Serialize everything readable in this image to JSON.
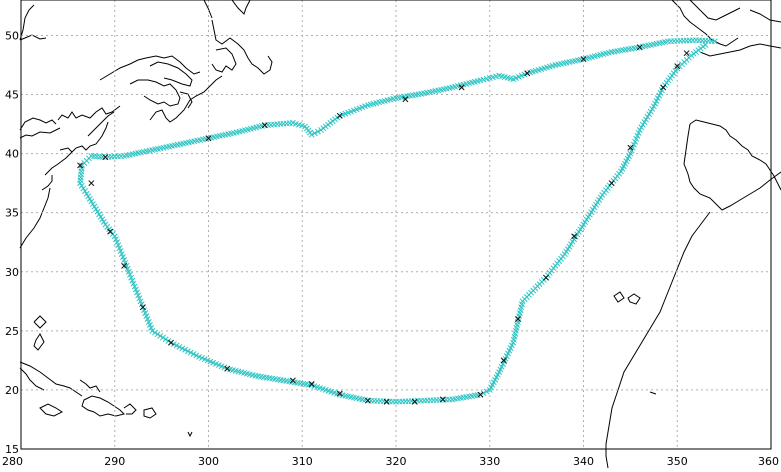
{
  "map": {
    "x_ticks": [
      "280",
      "290",
      "300",
      "310",
      "320",
      "330",
      "340",
      "350",
      "360"
    ],
    "y_ticks": [
      "15",
      "20",
      "25",
      "30",
      "35",
      "40",
      "45",
      "50"
    ],
    "lon_range": [
      280,
      360
    ],
    "lat_range": [
      15,
      53
    ],
    "grid": "dotted",
    "colors": {
      "coast": "#000000",
      "track": "#2ec4c4",
      "track_dark": "#111111",
      "grid": "#b0b0b0"
    },
    "marker": "x",
    "track_lonlat": [
      [
        354,
        49.5
      ],
      [
        352,
        49.6
      ],
      [
        349,
        49.5
      ],
      [
        346,
        49
      ],
      [
        343,
        48.6
      ],
      [
        340,
        48
      ],
      [
        337,
        47.5
      ],
      [
        334,
        46.8
      ],
      [
        332.5,
        46.3
      ],
      [
        331,
        46.6
      ],
      [
        329,
        46.2
      ],
      [
        326,
        45.6
      ],
      [
        323,
        45.1
      ],
      [
        320,
        44.7
      ],
      [
        317,
        44.1
      ],
      [
        314,
        43.2
      ],
      [
        312,
        42
      ],
      [
        311,
        41.6
      ],
      [
        310.3,
        42.3
      ],
      [
        309,
        42.6
      ],
      [
        306,
        42.4
      ],
      [
        303,
        41.8
      ],
      [
        300,
        41.3
      ],
      [
        297,
        40.8
      ],
      [
        294,
        40.3
      ],
      [
        291,
        39.8
      ],
      [
        289,
        39.7
      ],
      [
        287.5,
        39.8
      ],
      [
        286.5,
        39
      ],
      [
        286.3,
        37.5
      ],
      [
        287,
        36.6
      ],
      [
        289,
        34
      ],
      [
        290,
        33
      ],
      [
        291,
        31
      ],
      [
        292,
        29
      ],
      [
        293,
        27
      ],
      [
        294,
        25
      ],
      [
        296,
        24
      ],
      [
        299,
        22.8
      ],
      [
        302,
        21.8
      ],
      [
        305,
        21.2
      ],
      [
        308,
        20.8
      ],
      [
        311,
        20.4
      ],
      [
        314,
        19.6
      ],
      [
        317,
        19.1
      ],
      [
        320,
        19
      ],
      [
        323,
        19.1
      ],
      [
        326,
        19.2
      ],
      [
        329,
        19.6
      ],
      [
        330,
        20
      ],
      [
        331,
        21.5
      ],
      [
        332.5,
        24
      ],
      [
        333.5,
        27.5
      ],
      [
        336,
        29.5
      ],
      [
        338,
        31.5
      ],
      [
        340,
        34
      ],
      [
        342,
        36.5
      ],
      [
        344,
        38.5
      ],
      [
        345,
        40
      ],
      [
        346,
        42
      ],
      [
        347.5,
        44
      ],
      [
        348.5,
        45.6
      ],
      [
        350,
        47.2
      ],
      [
        351.5,
        48.3
      ],
      [
        353,
        49.2
      ]
    ],
    "dark_marks_lonlat": [
      [
        346,
        49
      ],
      [
        340,
        48
      ],
      [
        334,
        46.8
      ],
      [
        327,
        45.6
      ],
      [
        321,
        44.6
      ],
      [
        314,
        43.2
      ],
      [
        306,
        42.4
      ],
      [
        300,
        41.3
      ],
      [
        289,
        39.7
      ],
      [
        286.3,
        39
      ],
      [
        287.5,
        37.5
      ],
      [
        289.5,
        33.4
      ],
      [
        291,
        30.5
      ],
      [
        293,
        27
      ],
      [
        296,
        24
      ],
      [
        302,
        21.8
      ],
      [
        309,
        20.8
      ],
      [
        311,
        20.5
      ],
      [
        314,
        19.7
      ],
      [
        317,
        19.1
      ],
      [
        319,
        19
      ],
      [
        322,
        19
      ],
      [
        325,
        19.2
      ],
      [
        329,
        19.6
      ],
      [
        331.5,
        22.5
      ],
      [
        333,
        26
      ],
      [
        336,
        29.5
      ],
      [
        339,
        33
      ],
      [
        343,
        37.5
      ],
      [
        345,
        40.5
      ],
      [
        348.5,
        45.6
      ],
      [
        350,
        47.4
      ],
      [
        351,
        48.5
      ]
    ]
  }
}
